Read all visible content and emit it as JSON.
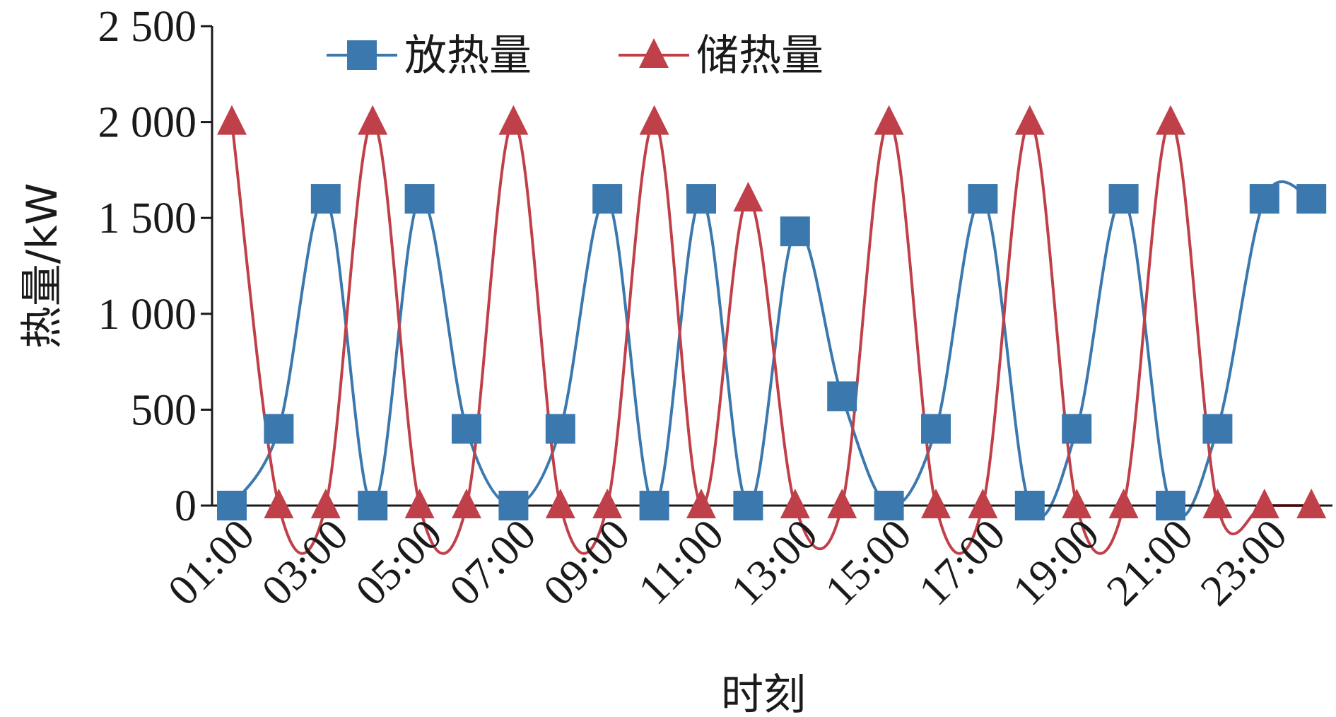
{
  "chart_data": {
    "type": "line",
    "xlabel": "时刻",
    "ylabel": "热量/kW",
    "ylim": [
      0,
      2500
    ],
    "yticks": [
      0,
      500,
      1000,
      1500,
      2000,
      2500
    ],
    "ytick_labels": [
      "0",
      "500",
      "1 000",
      "1 500",
      "2 000",
      "2 500"
    ],
    "x": [
      "01:00",
      "02:00",
      "03:00",
      "04:00",
      "05:00",
      "06:00",
      "07:00",
      "08:00",
      "09:00",
      "10:00",
      "11:00",
      "12:00",
      "13:00",
      "14:00",
      "15:00",
      "16:00",
      "17:00",
      "18:00",
      "19:00",
      "20:00",
      "21:00",
      "22:00",
      "23:00",
      "24:00"
    ],
    "xtick_labels": [
      "01:00",
      "03:00",
      "05:00",
      "07:00",
      "09:00",
      "11:00",
      "13:00",
      "15:00",
      "17:00",
      "19:00",
      "21:00",
      "23:00"
    ],
    "legend_position": "top",
    "grid": false,
    "series": [
      {
        "name": "放热量",
        "color": "#3a78ae",
        "marker": "square",
        "values": [
          0,
          400,
          1600,
          0,
          1600,
          400,
          0,
          400,
          1600,
          0,
          1600,
          0,
          1430,
          570,
          0,
          400,
          1600,
          0,
          400,
          1600,
          0,
          400,
          1600,
          1600
        ]
      },
      {
        "name": "储热量",
        "color": "#c0404a",
        "marker": "triangle",
        "values": [
          2000,
          0,
          0,
          2000,
          0,
          0,
          2000,
          0,
          0,
          2000,
          0,
          1600,
          0,
          0,
          2000,
          0,
          0,
          2000,
          0,
          0,
          2000,
          0,
          0,
          0
        ]
      }
    ]
  }
}
